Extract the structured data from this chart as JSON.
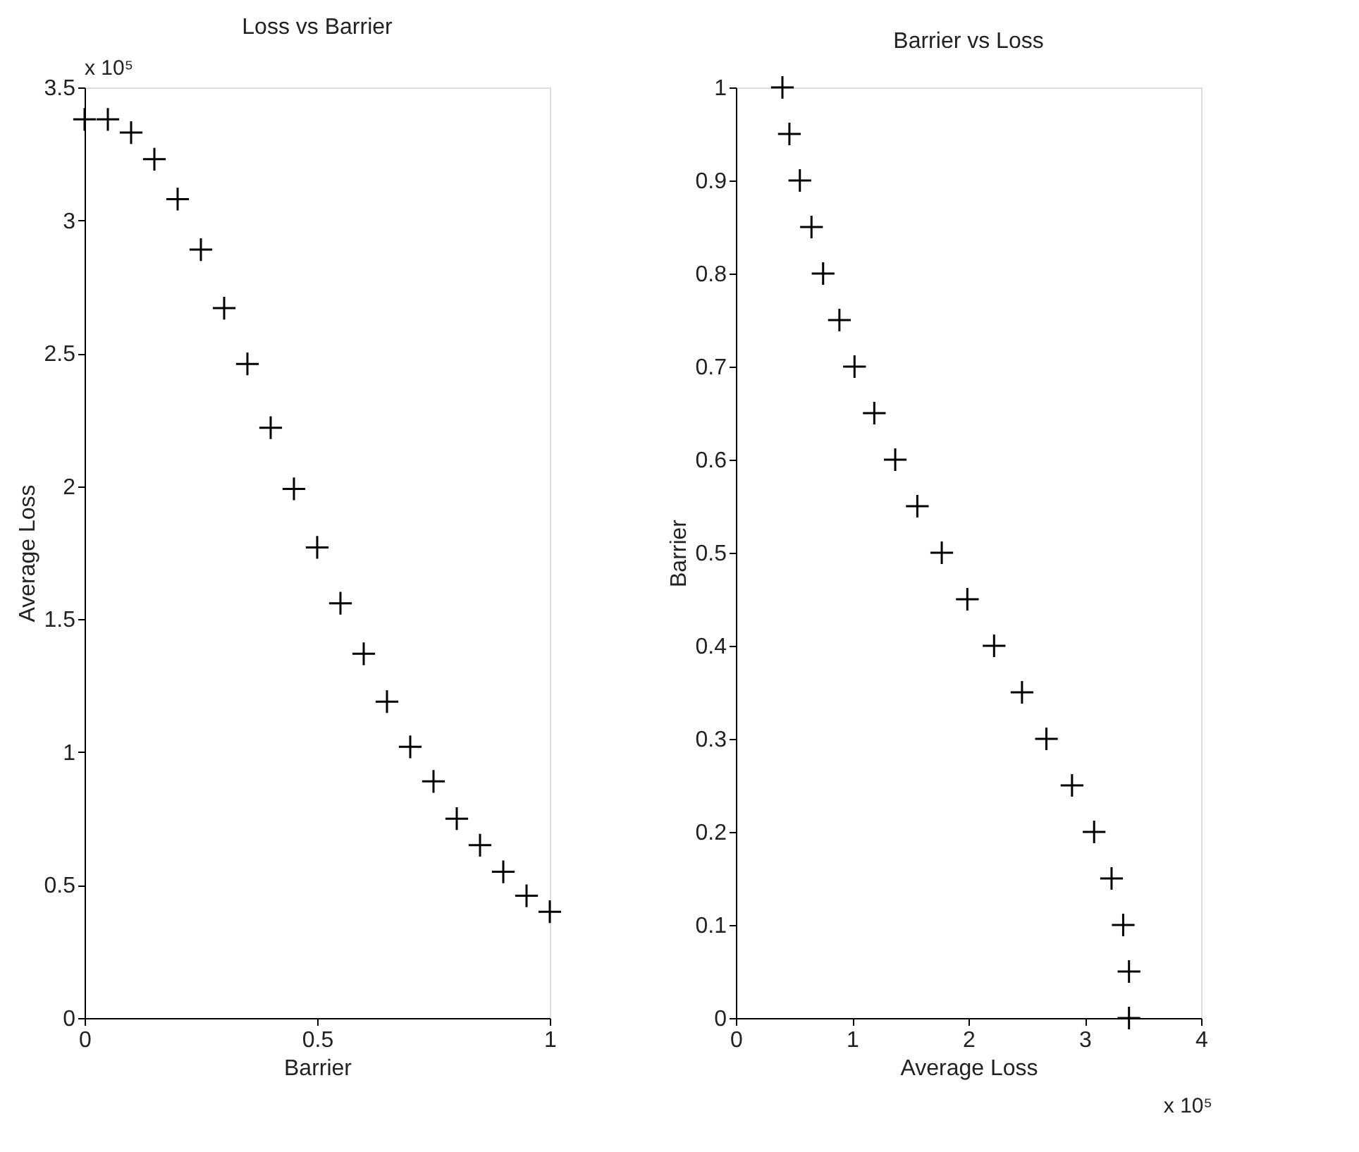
{
  "chart_data": [
    {
      "type": "scatter",
      "title": "Loss vs Barrier",
      "xlabel": "Barrier",
      "ylabel": "Average Loss",
      "annotations": [
        "x 10⁵"
      ],
      "x": [
        0,
        0.05,
        0.1,
        0.15,
        0.2,
        0.25,
        0.3,
        0.35,
        0.4,
        0.45,
        0.5,
        0.55,
        0.6,
        0.65,
        0.7,
        0.75,
        0.8,
        0.85,
        0.9,
        0.95,
        1
      ],
      "series": [
        {
          "color": "#000000",
          "values": [
            3.38,
            3.38,
            3.33,
            3.23,
            3.08,
            2.89,
            2.67,
            2.46,
            2.22,
            1.99,
            1.77,
            1.56,
            1.37,
            1.19,
            1.02,
            0.89,
            0.75,
            0.65,
            0.55,
            0.46,
            0.4
          ]
        }
      ],
      "marker": "cross",
      "grid": false,
      "xlim": [
        0,
        1
      ],
      "xticks": [
        0,
        0.5,
        1
      ],
      "ylim": [
        0,
        3.5
      ],
      "yticks": [
        0,
        0.5,
        1,
        1.5,
        2,
        2.5,
        3,
        3.5
      ]
    },
    {
      "type": "scatter",
      "title": "Barrier vs Loss",
      "xlabel": "Average Loss",
      "ylabel": "Barrier",
      "annotations": [
        "x 10⁵"
      ],
      "x": [
        3.38,
        3.38,
        3.33,
        3.23,
        3.08,
        2.89,
        2.67,
        2.46,
        2.22,
        1.99,
        1.77,
        1.56,
        1.37,
        1.19,
        1.02,
        0.89,
        0.75,
        0.65,
        0.55,
        0.46,
        0.4
      ],
      "series": [
        {
          "color": "#000000",
          "values": [
            0,
            0.05,
            0.1,
            0.15,
            0.2,
            0.25,
            0.3,
            0.35,
            0.4,
            0.45,
            0.5,
            0.55,
            0.6,
            0.65,
            0.7,
            0.75,
            0.8,
            0.85,
            0.9,
            0.95,
            1
          ]
        }
      ],
      "marker": "cross",
      "grid": false,
      "xlim": [
        0,
        4
      ],
      "xticks": [
        0,
        1,
        2,
        3,
        4
      ],
      "ylim": [
        0,
        1
      ],
      "yticks": [
        0,
        0.1,
        0.2,
        0.3,
        0.4,
        0.5,
        0.6,
        0.7,
        0.8,
        0.9,
        1
      ]
    }
  ]
}
